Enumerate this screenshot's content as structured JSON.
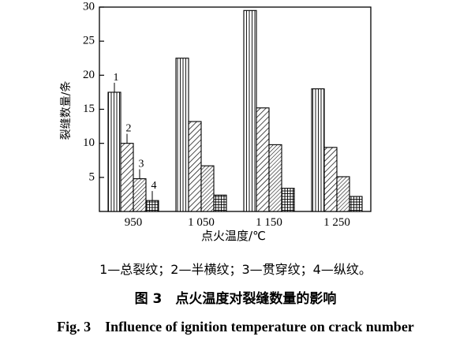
{
  "chart_data": {
    "type": "bar",
    "categories": [
      "950",
      "1 050",
      "1 150",
      "1 250"
    ],
    "series": [
      {
        "values": [
          17.5,
          22.5,
          29.5,
          18.0
        ]
      },
      {
        "values": [
          10.0,
          13.2,
          15.2,
          9.4
        ]
      },
      {
        "values": [
          4.8,
          6.7,
          9.8,
          5.1
        ]
      },
      {
        "values": [
          1.6,
          2.4,
          3.4,
          2.2
        ]
      }
    ],
    "bar_labels": [
      "1",
      "2",
      "3",
      "4"
    ],
    "ylabel": "裂缝数量/条",
    "xlabel": "点火温度/℃",
    "ylim": [
      0,
      30
    ],
    "yticks": [
      5,
      10,
      15,
      20,
      25,
      30
    ],
    "patterns": [
      "vertical-lines",
      "diagonal-lines",
      "dense-diagonal-lines",
      "grid"
    ]
  },
  "legend_text": "1—总裂纹；2—半横纹；3—贯穿纹；4—纵纹。",
  "fig_title_cn": "图 3　点火温度对裂缝数量的影响",
  "fig_title_en": "Fig. 3　Influence of ignition temperature on crack number"
}
